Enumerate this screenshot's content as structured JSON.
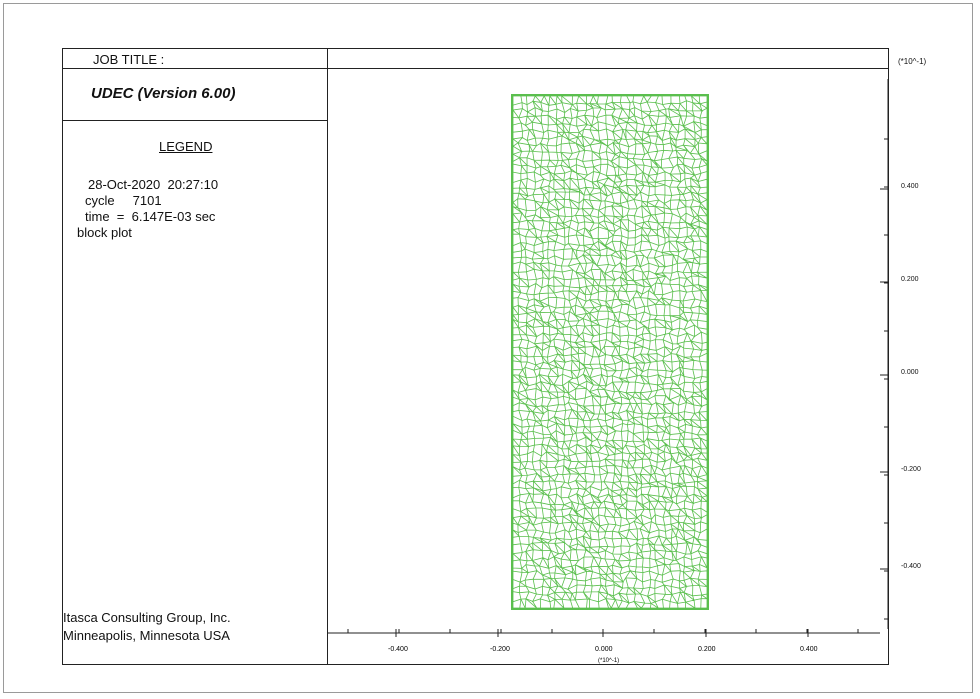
{
  "header": {
    "job_title": "JOB TITLE :",
    "program": "UDEC (Version 6.00)"
  },
  "legend": {
    "title": "LEGEND",
    "date_time": "28-Oct-2020  20:27:10",
    "cycle": "cycle     7101",
    "time": "time  =  6.147E-03 sec",
    "plot_type": "block plot"
  },
  "footer": {
    "company": "Itasca Consulting Group, Inc.",
    "location": "Minneapolis, Minnesota  USA"
  },
  "axes": {
    "scale_label_y": "(*10^-1)",
    "scale_label_x": "(*10^-1)",
    "x_ticks": [
      "-0.400",
      "-0.200",
      "0.000",
      "0.200",
      "0.400"
    ],
    "y_ticks": [
      "0.400",
      "0.200",
      "0.000",
      "-0.200",
      "-0.400"
    ]
  },
  "colors": {
    "block_fill": "#ffffff",
    "block_edges": "#5bbf4e",
    "frame": "#222222"
  }
}
